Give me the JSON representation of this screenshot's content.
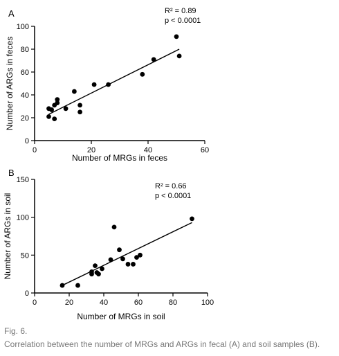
{
  "caption": {
    "figure_label": "Fig. 6.",
    "text": "Correlation between the number of MRGs and ARGs in fecal (A) and soil samples (B)."
  },
  "chart_data": [
    {
      "type": "scatter",
      "panel_label": "A",
      "xlabel": "Number of MRGs in feces",
      "ylabel": "Number of ARGs in feces",
      "xlim": [
        0,
        60
      ],
      "ylim": [
        0,
        100
      ],
      "xticks": [
        0,
        20,
        40,
        60
      ],
      "yticks": [
        0,
        20,
        40,
        60,
        80,
        100
      ],
      "grid": false,
      "annotations": [
        "R² = 0.89",
        "p < 0.0001"
      ],
      "points": [
        {
          "x": 5,
          "y": 21
        },
        {
          "x": 5,
          "y": 28
        },
        {
          "x": 6,
          "y": 27
        },
        {
          "x": 7,
          "y": 19
        },
        {
          "x": 7,
          "y": 31
        },
        {
          "x": 8,
          "y": 33
        },
        {
          "x": 8,
          "y": 36
        },
        {
          "x": 11,
          "y": 28
        },
        {
          "x": 14,
          "y": 43
        },
        {
          "x": 16,
          "y": 31
        },
        {
          "x": 16,
          "y": 25
        },
        {
          "x": 21,
          "y": 49
        },
        {
          "x": 26,
          "y": 49
        },
        {
          "x": 38,
          "y": 58
        },
        {
          "x": 42,
          "y": 71
        },
        {
          "x": 50,
          "y": 91
        },
        {
          "x": 51,
          "y": 74
        }
      ],
      "fit_line": {
        "x": [
          5,
          51
        ],
        "y": [
          23,
          80
        ]
      }
    },
    {
      "type": "scatter",
      "panel_label": "B",
      "xlabel": "Number of MRGs in soil",
      "ylabel": "Number of ARGs in soil",
      "xlim": [
        0,
        100
      ],
      "ylim": [
        0,
        150
      ],
      "xticks": [
        0,
        20,
        40,
        60,
        80,
        100
      ],
      "yticks": [
        0,
        50,
        100,
        150
      ],
      "grid": false,
      "annotations": [
        "R² = 0.66",
        "p < 0.0001"
      ],
      "points": [
        {
          "x": 16,
          "y": 10
        },
        {
          "x": 25,
          "y": 10
        },
        {
          "x": 33,
          "y": 25
        },
        {
          "x": 33,
          "y": 28
        },
        {
          "x": 35,
          "y": 36
        },
        {
          "x": 36,
          "y": 27
        },
        {
          "x": 37,
          "y": 25
        },
        {
          "x": 39,
          "y": 32
        },
        {
          "x": 44,
          "y": 44
        },
        {
          "x": 46,
          "y": 87
        },
        {
          "x": 49,
          "y": 57
        },
        {
          "x": 51,
          "y": 45
        },
        {
          "x": 54,
          "y": 38
        },
        {
          "x": 57,
          "y": 38
        },
        {
          "x": 59,
          "y": 47
        },
        {
          "x": 61,
          "y": 50
        },
        {
          "x": 91,
          "y": 98
        }
      ],
      "fit_line": {
        "x": [
          16,
          91
        ],
        "y": [
          10,
          93
        ]
      }
    }
  ]
}
